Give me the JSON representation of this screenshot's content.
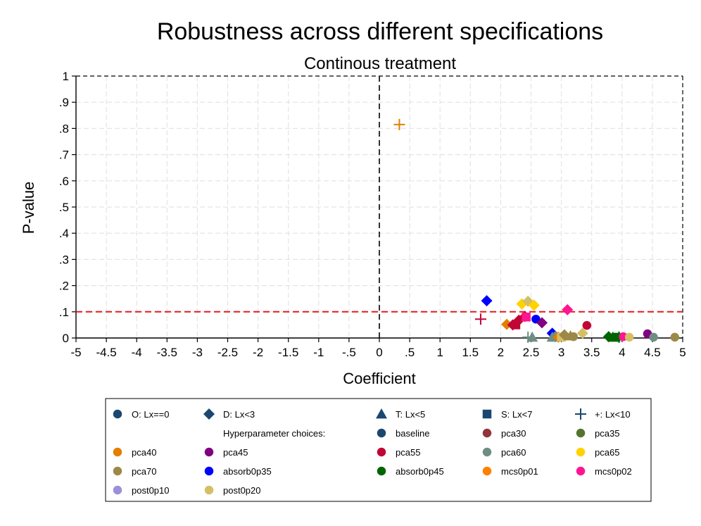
{
  "chart_data": {
    "type": "scatter",
    "title": "Robustness across different specifications",
    "subtitle": "Continous treatment",
    "xlabel": "Coefficient",
    "ylabel": "P-value",
    "xlim": [
      -5,
      5
    ],
    "ylim": [
      0,
      1
    ],
    "x_ticks": [
      "-5",
      "-4.5",
      "-4",
      "-3.5",
      "-3",
      "-2.5",
      "-2",
      "-1.5",
      "-1",
      "-.5",
      "0",
      ".5",
      "1",
      "1.5",
      "2",
      "2.5",
      "3",
      "3.5",
      "4",
      "4.5",
      "5"
    ],
    "y_ticks": [
      "0",
      ".1",
      ".2",
      ".3",
      ".4",
      ".5",
      ".6",
      ".7",
      ".8",
      ".9",
      "1"
    ],
    "grid": true,
    "reference_lines": {
      "vertical_x": 0,
      "horizontal_y": 0.1,
      "horizontal_color": "#e41a1c"
    },
    "legend_placement": "bottom",
    "legend": {
      "marker_rows": [
        {
          "label": "O: Lx==0",
          "shape": "circle"
        },
        {
          "label": "D: Lx<3",
          "shape": "diamond"
        },
        {
          "label": "T: Lx<5",
          "shape": "triangle"
        },
        {
          "label": "S: Lx<7",
          "shape": "square"
        },
        {
          "label": "+: Lx<10",
          "shape": "plus"
        }
      ],
      "marker_color": "#1a476f",
      "hyper_header": "Hyperparameter choices:",
      "colors": [
        {
          "label": "baseline",
          "color": "#1a476f"
        },
        {
          "label": "pca30",
          "color": "#90353b"
        },
        {
          "label": "pca35",
          "color": "#55752f"
        },
        {
          "label": "pca40",
          "color": "#e37e00"
        },
        {
          "label": "pca45",
          "color": "#800080"
        },
        {
          "label": "pca55",
          "color": "#c10534"
        },
        {
          "label": "pca60",
          "color": "#6e8e84"
        },
        {
          "label": "pca65",
          "color": "#ffd200"
        },
        {
          "label": "pca70",
          "color": "#9c8847"
        },
        {
          "label": "absorb0p35",
          "color": "#0000ff"
        },
        {
          "label": "absorb0p45",
          "color": "#006400"
        },
        {
          "label": "mcs0p01",
          "color": "#ff7f00"
        },
        {
          "label": "mcs0p02",
          "color": "#ff1493"
        },
        {
          "label": "post0p10",
          "color": "#9b8fd9"
        },
        {
          "label": "post0p20",
          "color": "#d4bf65"
        }
      ]
    },
    "points": [
      {
        "x": 0.33,
        "y": 0.815,
        "shape": "plus",
        "color": "#e37e00"
      },
      {
        "x": 1.67,
        "y": 0.072,
        "shape": "plus",
        "color": "#c10534"
      },
      {
        "x": 1.77,
        "y": 0.142,
        "shape": "diamond",
        "color": "#0000ff"
      },
      {
        "x": 2.1,
        "y": 0.052,
        "shape": "diamond",
        "color": "#e37e00"
      },
      {
        "x": 2.2,
        "y": 0.05,
        "shape": "diamond",
        "color": "#c10534"
      },
      {
        "x": 2.25,
        "y": 0.05,
        "shape": "square",
        "color": "#c10534"
      },
      {
        "x": 2.3,
        "y": 0.068,
        "shape": "diamond",
        "color": "#c10534"
      },
      {
        "x": 2.35,
        "y": 0.13,
        "shape": "diamond",
        "color": "#ffd200"
      },
      {
        "x": 2.4,
        "y": 0.082,
        "shape": "diamond",
        "color": "#c10534"
      },
      {
        "x": 2.45,
        "y": 0.14,
        "shape": "diamond",
        "color": "#d4bf65"
      },
      {
        "x": 2.42,
        "y": 0.08,
        "shape": "square",
        "color": "#ff1493"
      },
      {
        "x": 2.55,
        "y": 0.125,
        "shape": "diamond",
        "color": "#ffd200"
      },
      {
        "x": 2.45,
        "y": 0.003,
        "shape": "plus",
        "color": "#6e8e84"
      },
      {
        "x": 2.52,
        "y": 0.003,
        "shape": "triangle",
        "color": "#6e8e84"
      },
      {
        "x": 2.58,
        "y": 0.072,
        "shape": "circle",
        "color": "#0000ff"
      },
      {
        "x": 2.68,
        "y": 0.058,
        "shape": "diamond",
        "color": "#800080"
      },
      {
        "x": 2.85,
        "y": 0.018,
        "shape": "diamond",
        "color": "#0000ff"
      },
      {
        "x": 2.85,
        "y": 0.003,
        "shape": "triangle",
        "color": "#6e8e84"
      },
      {
        "x": 2.9,
        "y": 0.005,
        "shape": "diamond",
        "color": "#6e8e84"
      },
      {
        "x": 2.95,
        "y": 0.003,
        "shape": "diamond",
        "color": "#e37e00"
      },
      {
        "x": 3.0,
        "y": 0.003,
        "shape": "square",
        "color": "#d4bf65"
      },
      {
        "x": 3.05,
        "y": 0.012,
        "shape": "diamond",
        "color": "#9c8847"
      },
      {
        "x": 3.1,
        "y": 0.108,
        "shape": "diamond",
        "color": "#ff1493"
      },
      {
        "x": 3.15,
        "y": 0.008,
        "shape": "triangle",
        "color": "#9c8847"
      },
      {
        "x": 3.2,
        "y": 0.005,
        "shape": "circle",
        "color": "#9c8847"
      },
      {
        "x": 3.35,
        "y": 0.018,
        "shape": "diamond",
        "color": "#d4bf65"
      },
      {
        "x": 3.42,
        "y": 0.048,
        "shape": "circle",
        "color": "#c10534"
      },
      {
        "x": 3.78,
        "y": 0.005,
        "shape": "diamond",
        "color": "#006400"
      },
      {
        "x": 3.85,
        "y": 0.003,
        "shape": "triangle",
        "color": "#006400"
      },
      {
        "x": 3.9,
        "y": 0.003,
        "shape": "square",
        "color": "#006400"
      },
      {
        "x": 3.95,
        "y": 0.003,
        "shape": "plus",
        "color": "#006400"
      },
      {
        "x": 4.02,
        "y": 0.005,
        "shape": "circle",
        "color": "#ff1493"
      },
      {
        "x": 4.12,
        "y": 0.003,
        "shape": "circle",
        "color": "#d4bf65"
      },
      {
        "x": 4.42,
        "y": 0.016,
        "shape": "circle",
        "color": "#800080"
      },
      {
        "x": 4.52,
        "y": 0.003,
        "shape": "circle",
        "color": "#6e8e84"
      },
      {
        "x": 4.87,
        "y": 0.003,
        "shape": "circle",
        "color": "#9c8847"
      }
    ]
  }
}
